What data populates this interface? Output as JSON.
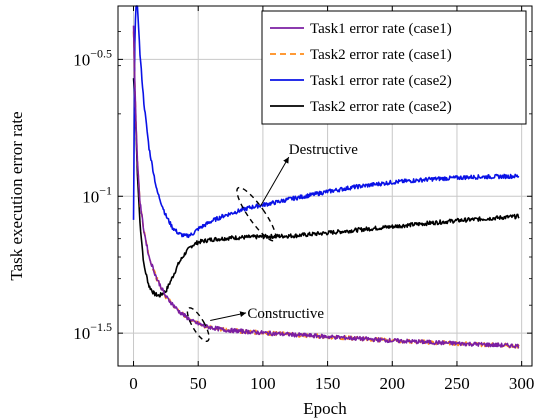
{
  "chart_data": {
    "type": "line",
    "xlabel": "Epoch",
    "ylabel": "Task execution error rate",
    "xlim": [
      -12,
      308
    ],
    "ylim_log10": [
      -1.62,
      -0.305
    ],
    "y_scale": "log",
    "grid": true,
    "legend_position": "top-right",
    "x_ticks": [
      0,
      50,
      100,
      150,
      200,
      250,
      300
    ],
    "x_tick_labels": [
      "0",
      "50",
      "100",
      "150",
      "200",
      "250",
      "300"
    ],
    "y_ticks": [
      {
        "base": "10",
        "exp": "−0.5",
        "log10": -0.5
      },
      {
        "base": "10",
        "exp": "−1",
        "log10": -1.0
      },
      {
        "base": "10",
        "exp": "−1.5",
        "log10": -1.5
      }
    ],
    "series": [
      {
        "name": "Task1 error rate (case1)",
        "color": "#7b1fa2",
        "dash": "solid",
        "points": [
          [
            0,
            0.42
          ],
          [
            1,
            0.26
          ],
          [
            2,
            0.18
          ],
          [
            3,
            0.135
          ],
          [
            5,
            0.095
          ],
          [
            8,
            0.075
          ],
          [
            12,
            0.06
          ],
          [
            18,
            0.05
          ],
          [
            25,
            0.043
          ],
          [
            35,
            0.038
          ],
          [
            45,
            0.035
          ],
          [
            55,
            0.0335
          ],
          [
            70,
            0.0325
          ],
          [
            100,
            0.0317
          ],
          [
            150,
            0.0307
          ],
          [
            200,
            0.0297
          ],
          [
            250,
            0.029
          ],
          [
            298,
            0.0284
          ]
        ]
      },
      {
        "name": "Task2 error rate (case1)",
        "color": "#ff8c1a",
        "dash": "dashed",
        "points": [
          [
            0,
            0.4
          ],
          [
            1,
            0.26
          ],
          [
            2,
            0.18
          ],
          [
            3,
            0.135
          ],
          [
            5,
            0.095
          ],
          [
            8,
            0.075
          ],
          [
            12,
            0.06
          ],
          [
            18,
            0.05
          ],
          [
            25,
            0.043
          ],
          [
            35,
            0.038
          ],
          [
            45,
            0.035
          ],
          [
            55,
            0.0335
          ],
          [
            70,
            0.0325
          ],
          [
            100,
            0.0317
          ],
          [
            150,
            0.0307
          ],
          [
            200,
            0.0297
          ],
          [
            250,
            0.029
          ],
          [
            298,
            0.0284
          ]
        ]
      },
      {
        "name": "Task1 error rate (case2)",
        "color": "#0a12e6",
        "dash": "solid",
        "points": [
          [
            0,
            0.082
          ],
          [
            1,
            0.36
          ],
          [
            2,
            0.55
          ],
          [
            3,
            0.5
          ],
          [
            5,
            0.33
          ],
          [
            8,
            0.22
          ],
          [
            12,
            0.15
          ],
          [
            18,
            0.105
          ],
          [
            25,
            0.085
          ],
          [
            30,
            0.077
          ],
          [
            35,
            0.073
          ],
          [
            40,
            0.0715
          ],
          [
            45,
            0.0725
          ],
          [
            50,
            0.076
          ],
          [
            60,
            0.081
          ],
          [
            70,
            0.085
          ],
          [
            80,
            0.088
          ],
          [
            90,
            0.091
          ],
          [
            100,
            0.093
          ],
          [
            110,
            0.095
          ],
          [
            120,
            0.0975
          ],
          [
            130,
            0.0995
          ],
          [
            150,
            0.104
          ],
          [
            170,
            0.108
          ],
          [
            200,
            0.1125
          ],
          [
            230,
            0.1155
          ],
          [
            260,
            0.1175
          ],
          [
            280,
            0.118
          ],
          [
            298,
            0.1185
          ]
        ]
      },
      {
        "name": "Task2 error rate (case2)",
        "color": "#000000",
        "dash": "solid",
        "points": [
          [
            0,
            0.27
          ],
          [
            1,
            0.23
          ],
          [
            2,
            0.17
          ],
          [
            3,
            0.12
          ],
          [
            5,
            0.08
          ],
          [
            8,
            0.056
          ],
          [
            12,
            0.047
          ],
          [
            16,
            0.044
          ],
          [
            20,
            0.0433
          ],
          [
            25,
            0.045
          ],
          [
            30,
            0.0505
          ],
          [
            35,
            0.057
          ],
          [
            40,
            0.062
          ],
          [
            45,
            0.066
          ],
          [
            50,
            0.068
          ],
          [
            60,
            0.0695
          ],
          [
            75,
            0.0705
          ],
          [
            100,
            0.0712
          ],
          [
            125,
            0.0718
          ],
          [
            150,
            0.0735
          ],
          [
            175,
            0.0755
          ],
          [
            200,
            0.0775
          ],
          [
            225,
            0.0795
          ],
          [
            250,
            0.0815
          ],
          [
            275,
            0.083
          ],
          [
            298,
            0.0845
          ]
        ]
      }
    ],
    "annotations": [
      {
        "text": "Destructive",
        "target_x": 95,
        "target_y": 0.086
      },
      {
        "text": "Constructive",
        "target_x": 50,
        "target_y": 0.034
      }
    ]
  }
}
